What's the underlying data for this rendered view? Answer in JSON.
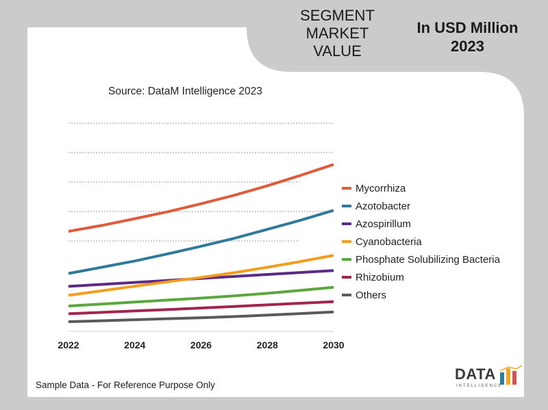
{
  "header": {
    "segment_title": "SEGMENT MARKET VALUE",
    "segment_lines": [
      "SEGMENT",
      "MARKET",
      "VALUE"
    ],
    "unit_lines": [
      "In USD Million",
      "2023"
    ]
  },
  "source_text": "Source: DataM Intelligence 2023",
  "footer_note": "Sample Data - For Reference Purpose Only",
  "logo": {
    "text": "DATA",
    "subtext": "INTELLIGENCE"
  },
  "colors": {
    "background": "#cbcbcb",
    "panel": "#ffffff",
    "logo_bars": [
      "#2e7d9a",
      "#f4a623",
      "#d9534f"
    ]
  },
  "chart_data": {
    "type": "line",
    "title": "",
    "xlabel": "",
    "ylabel": "",
    "x": [
      2022,
      2023,
      2024,
      2025,
      2026,
      2027,
      2028,
      2029,
      2030
    ],
    "x_ticks": [
      "2022",
      "2024",
      "2026",
      "2028",
      "2030"
    ],
    "ylim": [
      0,
      100
    ],
    "grid": "horizontal dashed",
    "legend": "right",
    "series": [
      {
        "name": "Mycorrhiza",
        "color": "#e05a3c",
        "values": [
          45.5,
          48.5,
          51.9,
          55.4,
          59.4,
          63.7,
          68.5,
          73.7,
          79.2
        ]
      },
      {
        "name": "Azotobacter",
        "color": "#2f7a9a",
        "values": [
          24.3,
          27.4,
          30.6,
          34.2,
          38.0,
          42.0,
          46.5,
          51.1,
          56.1
        ]
      },
      {
        "name": "Azospirillum",
        "color": "#5b2a86",
        "values": [
          17.8,
          18.8,
          19.8,
          20.8,
          21.8,
          22.8,
          23.8,
          24.8,
          25.8
        ]
      },
      {
        "name": "Cyanobacteria",
        "color": "#f39c1e",
        "values": [
          13.3,
          15.6,
          17.9,
          20.1,
          22.3,
          24.7,
          27.4,
          30.3,
          33.4
        ]
      },
      {
        "name": "Phosphate Solubilizing Bacteria",
        "color": "#5aa83c",
        "values": [
          7.9,
          8.9,
          9.9,
          10.9,
          11.9,
          13.0,
          14.3,
          15.8,
          17.3
        ]
      },
      {
        "name": "Rhizobium",
        "color": "#a3244e",
        "values": [
          4.0,
          4.7,
          5.4,
          6.1,
          6.9,
          7.7,
          8.5,
          9.3,
          10.1
        ]
      },
      {
        "name": "Others",
        "color": "#5a5a5a",
        "values": [
          0.0,
          0.5,
          1.0,
          1.5,
          2.0,
          2.6,
          3.3,
          4.1,
          4.9
        ]
      }
    ]
  }
}
